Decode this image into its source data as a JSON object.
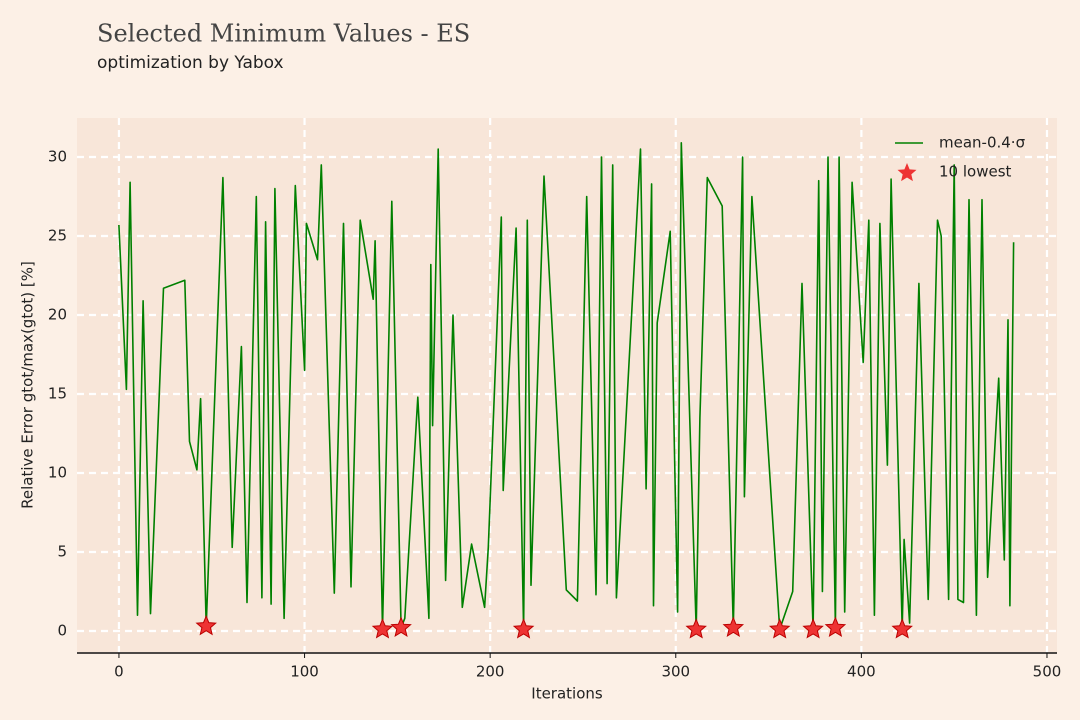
{
  "chart_data": {
    "type": "line",
    "title": "Selected Minimum Values - ES",
    "subtitle": "optimization by Yabox",
    "xlabel": "Iterations",
    "ylabel": "Relative Error gtot/max(gtot) [%]",
    "xlim": [
      -22.6,
      505.4
    ],
    "ylim": [
      -1.33,
      32.47
    ],
    "xticks": [
      0,
      100,
      200,
      300,
      400,
      500
    ],
    "yticks": [
      0,
      5,
      10,
      15,
      20,
      25,
      30
    ],
    "grid": true,
    "legend": "upper right",
    "x": [
      0,
      4,
      6,
      10,
      13,
      17,
      24,
      35.5,
      38,
      42,
      44,
      47,
      56,
      61,
      66,
      69,
      74,
      77,
      79,
      82,
      84,
      89,
      95,
      100,
      101,
      107,
      109,
      116,
      121,
      125,
      130,
      137,
      138,
      142,
      147,
      152,
      154,
      161,
      167,
      168,
      169,
      172,
      176,
      180,
      185,
      190,
      197,
      199,
      206,
      207,
      214,
      218,
      220,
      222,
      229,
      241,
      247,
      250,
      252,
      257,
      260,
      263,
      266,
      268,
      281,
      284,
      287,
      288,
      290,
      297,
      301,
      303,
      311,
      313,
      317,
      325,
      331,
      336,
      337,
      341,
      356,
      363,
      368,
      374,
      377,
      379,
      382,
      386,
      388,
      391,
      395,
      401,
      404,
      407,
      410,
      414,
      416,
      422,
      423,
      426,
      431,
      436,
      441,
      443,
      447,
      450,
      452,
      455,
      458,
      462,
      465,
      468,
      474,
      477,
      479,
      480,
      482
    ],
    "series": [
      {
        "name": "mean-0.4·σ",
        "color": "#008000",
        "values": [
          25.7,
          15.3,
          28.4,
          1,
          20.9,
          1.1,
          21.7,
          22.2,
          12,
          10.2,
          14.7,
          0.3,
          28.7,
          5.3,
          18,
          1.8,
          27.5,
          2.1,
          25.9,
          1.7,
          28,
          0.8,
          28.2,
          16.5,
          25.8,
          23.5,
          29.5,
          2.4,
          25.8,
          2.8,
          26,
          21,
          24.7,
          0.1,
          27.2,
          0.2,
          0.8,
          14.8,
          0.8,
          23.2,
          13,
          30.5,
          3.2,
          20,
          1.5,
          5.5,
          1.5,
          5.3,
          26.2,
          8.9,
          25.5,
          0.1,
          26,
          2.9,
          28.8,
          2.6,
          1.9,
          17,
          27.5,
          2.3,
          30,
          3,
          29.5,
          2.1,
          30.5,
          9,
          28.3,
          1.6,
          19.5,
          25.3,
          1.2,
          30.9,
          0.1,
          13.5,
          28.7,
          26.9,
          0.2,
          30,
          8.5,
          27.5,
          0.1,
          2.5,
          22,
          0.1,
          28.5,
          2.5,
          30,
          0.2,
          30,
          1.2,
          28.4,
          17,
          26,
          1,
          25.8,
          10.5,
          28.6,
          0.1,
          5.8,
          0.5,
          22,
          2,
          26,
          25,
          2,
          29.5,
          2,
          1.8,
          27.3,
          1,
          27.3,
          3.4,
          16,
          4.5,
          19.7,
          1.6,
          24.6
        ]
      },
      {
        "name": "10 lowest",
        "color": "#ee3333",
        "marker": "star",
        "x": [
          47,
          142,
          152,
          218,
          311,
          331,
          356,
          374,
          386,
          422
        ],
        "values": [
          0.3,
          0.1,
          0.2,
          0.1,
          0.1,
          0.2,
          0.1,
          0.1,
          0.2,
          0.1
        ]
      }
    ]
  }
}
